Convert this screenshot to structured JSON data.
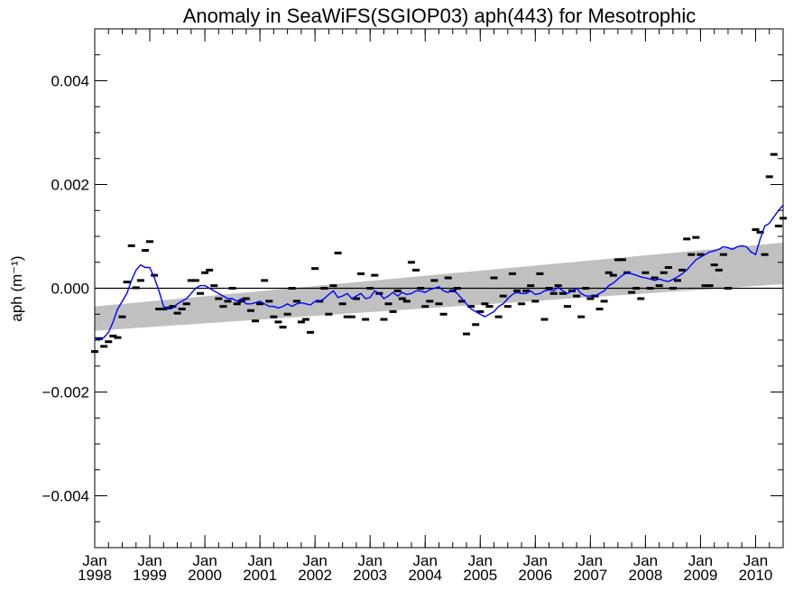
{
  "chart_data": {
    "type": "line",
    "title": "Anomaly in SeaWiFS(SGIOP03) aph(443) for Mesotrophic",
    "ylabel": "aph (m⁻¹)",
    "xlabel": "",
    "ylim": [
      -0.005,
      0.005
    ],
    "xlim": [
      "1998-01",
      "2010-07"
    ],
    "yticks": [
      {
        "value": 0.004,
        "label": "0.004"
      },
      {
        "value": 0.002,
        "label": "0.002"
      },
      {
        "value": 0.0,
        "label": "0.000"
      },
      {
        "value": -0.002,
        "label": "−0.002"
      },
      {
        "value": -0.004,
        "label": "−0.004"
      }
    ],
    "xticks": [
      {
        "month": "Jan",
        "year": "1998",
        "date": "1998-01"
      },
      {
        "month": "Jan",
        "year": "1999",
        "date": "1999-01"
      },
      {
        "month": "Jan",
        "year": "2000",
        "date": "2000-01"
      },
      {
        "month": "Jan",
        "year": "2001",
        "date": "2001-01"
      },
      {
        "month": "Jan",
        "year": "2002",
        "date": "2002-01"
      },
      {
        "month": "Jan",
        "year": "2003",
        "date": "2003-01"
      },
      {
        "month": "Jan",
        "year": "2004",
        "date": "2004-01"
      },
      {
        "month": "Jan",
        "year": "2005",
        "date": "2005-01"
      },
      {
        "month": "Jan",
        "year": "2006",
        "date": "2006-01"
      },
      {
        "month": "Jan",
        "year": "2007",
        "date": "2007-01"
      },
      {
        "month": "Jan",
        "year": "2008",
        "date": "2008-01"
      },
      {
        "month": "Jan",
        "year": "2009",
        "date": "2009-01"
      },
      {
        "month": "Jan",
        "year": "2010",
        "date": "2010-01"
      }
    ],
    "trend_band": {
      "color": "#c0c0c0",
      "x": [
        "1998-01",
        "2010-07"
      ],
      "lower": [
        -0.00082,
        8e-05
      ],
      "upper": [
        -0.00035,
        0.00088
      ]
    },
    "zero_line": 0.0,
    "colors": {
      "running_mean": "#0000ff",
      "points": "#000000",
      "band": "#c0c0c0"
    },
    "series": [
      {
        "type": "scatter",
        "x": [
          "1998-01",
          "1998-02",
          "1998-03",
          "1998-04",
          "1998-05",
          "1998-06",
          "1998-07",
          "1998-08",
          "1998-09",
          "1998-10",
          "1998-11",
          "1998-12",
          "1999-01",
          "1999-02",
          "1999-03",
          "1999-04",
          "1999-05",
          "1999-06",
          "1999-07",
          "1999-08",
          "1999-09",
          "1999-10",
          "1999-11",
          "1999-12",
          "2000-01",
          "2000-02",
          "2000-03",
          "2000-04",
          "2000-05",
          "2000-06",
          "2000-07",
          "2000-08",
          "2000-09",
          "2000-10",
          "2000-11",
          "2000-12",
          "2001-01",
          "2001-02",
          "2001-03",
          "2001-04",
          "2001-05",
          "2001-06",
          "2001-07",
          "2001-08",
          "2001-09",
          "2001-10",
          "2001-11",
          "2001-12",
          "2002-01",
          "2002-02",
          "2002-03",
          "2002-04",
          "2002-05",
          "2002-06",
          "2002-07",
          "2002-08",
          "2002-09",
          "2002-10",
          "2002-11",
          "2002-12",
          "2003-01",
          "2003-02",
          "2003-03",
          "2003-04",
          "2003-05",
          "2003-06",
          "2003-07",
          "2003-08",
          "2003-09",
          "2003-10",
          "2003-11",
          "2003-12",
          "2004-01",
          "2004-02",
          "2004-03",
          "2004-04",
          "2004-05",
          "2004-06",
          "2004-07",
          "2004-08",
          "2004-09",
          "2004-10",
          "2004-11",
          "2004-12",
          "2005-01",
          "2005-02",
          "2005-03",
          "2005-04",
          "2005-05",
          "2005-06",
          "2005-07",
          "2005-08",
          "2005-09",
          "2005-10",
          "2005-11",
          "2005-12",
          "2006-01",
          "2006-02",
          "2006-03",
          "2006-04",
          "2006-05",
          "2006-06",
          "2006-07",
          "2006-08",
          "2006-09",
          "2006-10",
          "2006-11",
          "2006-12",
          "2007-01",
          "2007-02",
          "2007-03",
          "2007-04",
          "2007-05",
          "2007-06",
          "2007-07",
          "2007-08",
          "2007-09",
          "2007-10",
          "2007-11",
          "2007-12",
          "2008-01",
          "2008-02",
          "2008-03",
          "2008-04",
          "2008-05",
          "2008-06",
          "2008-07",
          "2008-08",
          "2008-09",
          "2008-10",
          "2008-11",
          "2008-12",
          "2009-01",
          "2009-02",
          "2009-03",
          "2009-04",
          "2009-05",
          "2009-06",
          "2009-07",
          "2010-01",
          "2010-02",
          "2010-03",
          "2010-04",
          "2010-05",
          "2010-06",
          "2010-07"
        ],
        "y": [
          -0.00122,
          -0.00097,
          -0.00112,
          -0.00103,
          -0.00092,
          -0.00095,
          -0.00055,
          0.00012,
          0.00082,
          1e-05,
          0.00015,
          0.00073,
          0.0009,
          0.00025,
          -0.0004,
          -0.0004,
          -0.00038,
          -0.00035,
          -0.00048,
          -0.0004,
          -0.0003,
          0.00015,
          0.00015,
          -0.0001,
          0.0003,
          0.00035,
          5e-05,
          -0.0002,
          -0.00035,
          -0.00025,
          0.0,
          -0.0003,
          -0.00025,
          -0.0002,
          -0.00043,
          -0.00063,
          -0.0003,
          0.00015,
          -0.00025,
          -0.00055,
          -0.00065,
          -0.00075,
          -0.0005,
          0.0,
          -0.00025,
          -0.00065,
          -0.0006,
          -0.00085,
          0.00038,
          -0.00025,
          0.0,
          -0.0005,
          5e-05,
          0.00068,
          -0.0003,
          -0.00055,
          -0.00055,
          -0.0002,
          0.00028,
          -0.0006,
          0.0,
          0.00025,
          -0.0001,
          -0.0006,
          -0.0003,
          -0.00045,
          -5e-05,
          -0.0002,
          -0.00025,
          0.0005,
          0.00035,
          0.0,
          -0.00035,
          -0.00025,
          0.00015,
          -0.0003,
          -0.0005,
          0.0002,
          -5e-05,
          0.0,
          -0.00025,
          -0.00088,
          -0.00035,
          -0.0007,
          -0.00045,
          -0.0003,
          -0.00035,
          0.0002,
          -0.00055,
          -0.00015,
          -0.00035,
          0.00028,
          -5e-05,
          -0.0003,
          -5e-05,
          5e-05,
          -0.00025,
          0.00028,
          -0.0006,
          0.0,
          -0.0001,
          5e-05,
          -0.0001,
          -0.00035,
          -5e-05,
          -0.00015,
          -0.00055,
          0.0,
          -0.0002,
          -0.00015,
          -0.0004,
          -0.00025,
          0.0003,
          0.00025,
          0.00055,
          0.00055,
          0.0003,
          -8e-05,
          0.0,
          -0.0002,
          0.0003,
          0.0,
          0.0002,
          5e-05,
          0.0003,
          0.0004,
          0.0,
          0.00015,
          0.00035,
          0.00095,
          0.00065,
          0.00098,
          0.00065,
          5e-05,
          5e-05,
          0.00045,
          0.00035,
          0.00065,
          0.0,
          0.00113,
          0.00108,
          0.00065,
          0.00215,
          0.00258,
          0.0012,
          0.00135
        ]
      },
      {
        "type": "line",
        "x": [
          "1998-01",
          "1998-02",
          "1998-03",
          "1998-04",
          "1998-05",
          "1998-06",
          "1998-07",
          "1998-08",
          "1998-09",
          "1998-10",
          "1998-11",
          "1998-12",
          "1999-01",
          "1999-02",
          "1999-03",
          "1999-04",
          "1999-05",
          "1999-06",
          "1999-07",
          "1999-08",
          "1999-09",
          "1999-10",
          "1999-11",
          "1999-12",
          "2000-01",
          "2000-02",
          "2000-03",
          "2000-04",
          "2000-05",
          "2000-06",
          "2000-07",
          "2000-08",
          "2000-09",
          "2000-10",
          "2000-11",
          "2000-12",
          "2001-01",
          "2001-02",
          "2001-03",
          "2001-04",
          "2001-05",
          "2001-06",
          "2001-07",
          "2001-08",
          "2001-09",
          "2001-10",
          "2001-11",
          "2001-12",
          "2002-01",
          "2002-02",
          "2002-03",
          "2002-04",
          "2002-05",
          "2002-06",
          "2002-07",
          "2002-08",
          "2002-09",
          "2002-10",
          "2002-11",
          "2002-12",
          "2003-01",
          "2003-02",
          "2003-03",
          "2003-04",
          "2003-05",
          "2003-06",
          "2003-07",
          "2003-08",
          "2003-09",
          "2003-10",
          "2003-11",
          "2003-12",
          "2004-01",
          "2004-02",
          "2004-03",
          "2004-04",
          "2004-05",
          "2004-06",
          "2004-07",
          "2004-08",
          "2004-09",
          "2004-10",
          "2004-11",
          "2004-12",
          "2005-01",
          "2005-02",
          "2005-03",
          "2005-04",
          "2005-05",
          "2005-06",
          "2005-07",
          "2005-08",
          "2005-09",
          "2005-10",
          "2005-11",
          "2005-12",
          "2006-01",
          "2006-02",
          "2006-03",
          "2006-04",
          "2006-05",
          "2006-06",
          "2006-07",
          "2006-08",
          "2006-09",
          "2006-10",
          "2006-11",
          "2006-12",
          "2007-01",
          "2007-02",
          "2007-03",
          "2007-04",
          "2007-05",
          "2007-06",
          "2007-07",
          "2007-08",
          "2007-09",
          "2007-10",
          "2007-11",
          "2007-12",
          "2008-01",
          "2008-02",
          "2008-03",
          "2008-04",
          "2008-05",
          "2008-06",
          "2008-07",
          "2008-08",
          "2008-09",
          "2008-10",
          "2008-11",
          "2008-12",
          "2009-01",
          "2009-02",
          "2009-03",
          "2009-04",
          "2009-05",
          "2009-06",
          "2009-07",
          "2009-08",
          "2009-09",
          "2009-10",
          "2009-11",
          "2009-12",
          "2010-01",
          "2010-02",
          "2010-03",
          "2010-04",
          "2010-05",
          "2010-06",
          "2010-07"
        ],
        "y": [
          -0.00095,
          -0.001,
          -0.00095,
          -0.00085,
          -0.00065,
          -0.0004,
          -0.00025,
          -0.0001,
          0.00015,
          0.00035,
          0.00045,
          0.0004,
          0.0004,
          0.0002,
          -5e-05,
          -0.00035,
          -0.0004,
          -0.00038,
          -0.0003,
          -0.00025,
          -0.0002,
          -0.0001,
          0.0,
          5e-05,
          5e-05,
          0.0,
          -5e-05,
          -0.0001,
          -0.00015,
          -0.0002,
          -0.0002,
          -0.00025,
          -0.0002,
          -0.0003,
          -0.0003,
          -0.00028,
          -0.00025,
          -0.0003,
          -0.00035,
          -0.00035,
          -0.00038,
          -0.00035,
          -0.0003,
          -0.00035,
          -0.0003,
          -0.00028,
          -0.0003,
          -0.00032,
          -0.00025,
          -0.00025,
          -0.0002,
          -0.00012,
          -5e-05,
          -0.00018,
          -0.00015,
          -0.0001,
          -0.0002,
          -0.00015,
          -0.0001,
          -0.0002,
          -0.00018,
          -5e-05,
          -0.0001,
          -0.0002,
          -0.00015,
          -8e-05,
          -0.00015,
          -8e-05,
          -0.00012,
          -0.0001,
          -5e-05,
          -5e-05,
          -8e-05,
          -3e-05,
          0.0,
          3e-05,
          -5e-05,
          -8e-05,
          -3e-05,
          -0.0001,
          -0.0002,
          -0.0003,
          -0.0004,
          -0.00045,
          -0.0005,
          -0.00055,
          -0.0005,
          -0.00045,
          -0.00035,
          -0.0003,
          -0.0002,
          -0.00012,
          -8e-05,
          -0.0001,
          -0.0001,
          -5e-05,
          -0.00012,
          -0.0001,
          -5e-05,
          -3e-05,
          -5e-05,
          2e-05,
          -5e-05,
          -0.0001,
          -5e-05,
          0.0,
          -0.0001,
          -0.00015,
          -0.00015,
          -0.00015,
          -0.0001,
          -5e-05,
          5e-05,
          0.0001,
          0.00018,
          0.00025,
          0.0003,
          0.00028,
          0.00025,
          0.00022,
          0.0002,
          0.00018,
          0.00015,
          0.00018,
          0.00015,
          0.00013,
          0.00017,
          0.00022,
          0.00028,
          0.00035,
          0.00045,
          0.00055,
          0.0006,
          0.00065,
          0.0007,
          0.00072,
          0.00075,
          0.0008,
          0.00078,
          0.00075,
          0.0008,
          0.00082,
          0.0008,
          0.0007,
          0.00065,
          0.00095,
          0.0012,
          0.00125,
          0.00138,
          0.0015,
          0.0016
        ]
      }
    ]
  }
}
